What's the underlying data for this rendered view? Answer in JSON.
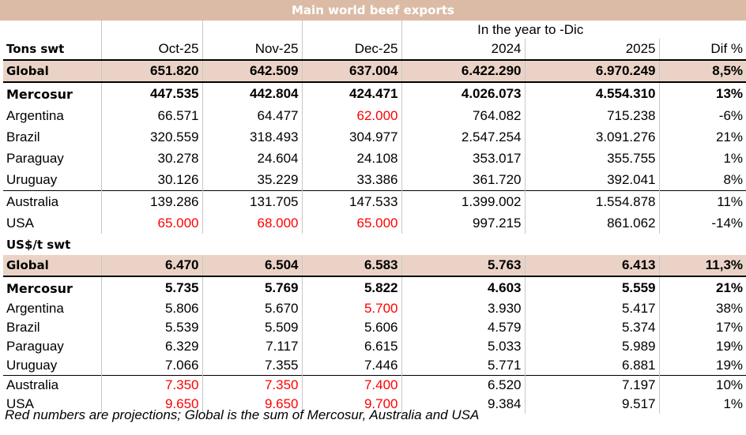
{
  "title": "Main world beef exports",
  "header": {
    "period_label": "In the year to -Dic",
    "unit1": "Tons swt",
    "columns": [
      "Oct-25",
      "Nov-25",
      "Dec-25",
      "2024",
      "2025",
      "Dif %"
    ]
  },
  "tons": [
    {
      "label": "Global",
      "values": [
        "651.820",
        "642.509",
        "637.004",
        "6.422.290",
        "6.970.249",
        "8,5%"
      ]
    },
    {
      "label": "Mercosur",
      "values": [
        "447.535",
        "442.804",
        "424.471",
        "4.026.073",
        "4.554.310",
        "13%"
      ]
    },
    {
      "label": "Argentina",
      "values": [
        "66.571",
        "64.477",
        "62.000",
        "764.082",
        "715.238",
        "-6%"
      ]
    },
    {
      "label": "Brazil",
      "values": [
        "320.559",
        "318.493",
        "304.977",
        "2.547.254",
        "3.091.276",
        "21%"
      ]
    },
    {
      "label": "Paraguay",
      "values": [
        "30.278",
        "24.604",
        "24.108",
        "353.017",
        "355.755",
        "1%"
      ]
    },
    {
      "label": "Uruguay",
      "values": [
        "30.126",
        "35.229",
        "33.386",
        "361.720",
        "392.041",
        "8%"
      ]
    },
    {
      "label": "Australia",
      "values": [
        "139.286",
        "131.705",
        "147.533",
        "1.399.002",
        "1.554.878",
        "11%"
      ]
    },
    {
      "label": "USA",
      "values": [
        "65.000",
        "68.000",
        "65.000",
        "997.215",
        "861.062",
        "-14%"
      ]
    }
  ],
  "unit2": "US$/t swt",
  "prices": [
    {
      "label": "Global",
      "values": [
        "6.470",
        "6.504",
        "6.583",
        "5.763",
        "6.413",
        "11,3%"
      ]
    },
    {
      "label": "Mercosur",
      "values": [
        "5.735",
        "5.769",
        "5.822",
        "4.603",
        "5.559",
        "21%"
      ]
    },
    {
      "label": "Argentina",
      "values": [
        "5.806",
        "5.670",
        "5.700",
        "3.930",
        "5.417",
        "38%"
      ]
    },
    {
      "label": "Brazil",
      "values": [
        "5.539",
        "5.509",
        "5.606",
        "4.579",
        "5.374",
        "17%"
      ]
    },
    {
      "label": "Paraguay",
      "values": [
        "6.329",
        "7.117",
        "6.615",
        "5.033",
        "5.989",
        "19%"
      ]
    },
    {
      "label": "Uruguay",
      "values": [
        "7.066",
        "7.355",
        "7.446",
        "5.771",
        "6.881",
        "19%"
      ]
    },
    {
      "label": "Australia",
      "values": [
        "7.350",
        "7.350",
        "7.400",
        "6.520",
        "7.197",
        "10%"
      ]
    },
    {
      "label": "USA",
      "values": [
        "9.650",
        "9.650",
        "9.700",
        "9.384",
        "9.517",
        "1%"
      ]
    }
  ],
  "note": "Red numbers are projections; Global is the sum of Mercosur, Australia and USA",
  "colors": {
    "projection": "#ff0000",
    "header_band": "#dbbba6",
    "global_band": "#ead3c6"
  }
}
